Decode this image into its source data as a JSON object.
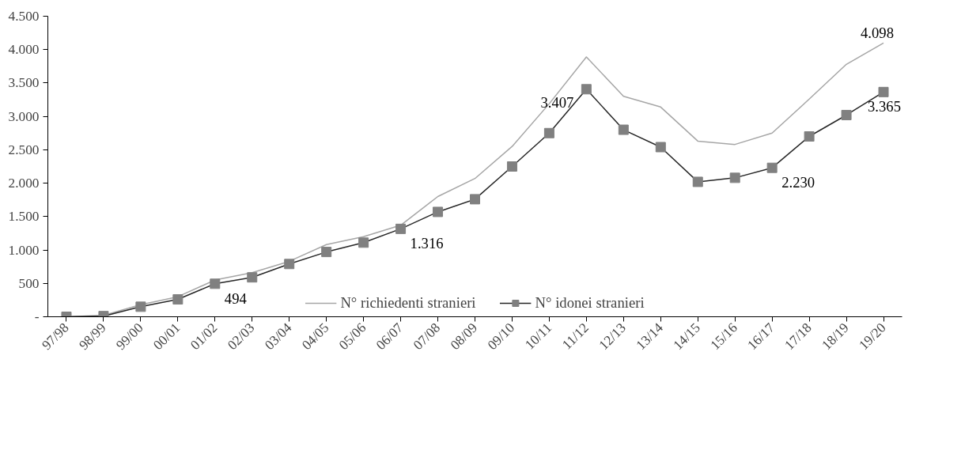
{
  "chart_data": {
    "type": "line",
    "categories": [
      "97/98",
      "98/99",
      "99/00",
      "00/01",
      "01/02",
      "02/03",
      "03/04",
      "04/05",
      "05/06",
      "06/07",
      "07/08",
      "08/09",
      "09/10",
      "10/11",
      "11/12",
      "12/13",
      "13/14",
      "14/15",
      "15/16",
      "16/17",
      "17/18",
      "18/19",
      "19/20"
    ],
    "series": [
      {
        "name": "N° richiedenti stranieri",
        "color": "#a6a6a6",
        "marker": "none",
        "values": [
          0,
          20,
          180,
          300,
          550,
          660,
          830,
          1080,
          1200,
          1370,
          1800,
          2070,
          2550,
          3190,
          3890,
          3300,
          3140,
          2630,
          2580,
          2750,
          3260,
          3780,
          4098
        ],
        "value_labels": [
          null,
          null,
          null,
          null,
          null,
          null,
          null,
          null,
          null,
          null,
          null,
          null,
          null,
          null,
          null,
          null,
          null,
          null,
          null,
          null,
          null,
          null,
          "4.098"
        ]
      },
      {
        "name": "N° idonei stranieri",
        "color": "#262626",
        "marker": "square",
        "values": [
          0,
          10,
          150,
          260,
          494,
          590,
          790,
          970,
          1110,
          1316,
          1570,
          1760,
          2250,
          2750,
          3407,
          2800,
          2540,
          2020,
          2080,
          2230,
          2700,
          3020,
          3365
        ],
        "value_labels": [
          null,
          null,
          null,
          null,
          "494",
          null,
          null,
          null,
          null,
          "1.316",
          null,
          null,
          null,
          null,
          "3.407",
          null,
          null,
          null,
          null,
          "2.230",
          null,
          null,
          "3.365"
        ]
      }
    ],
    "ylim": [
      0,
      4500
    ],
    "yticks": [
      {
        "value": 0,
        "label": "-"
      },
      {
        "value": 500,
        "label": "500"
      },
      {
        "value": 1000,
        "label": "1.000"
      },
      {
        "value": 1500,
        "label": "1.500"
      },
      {
        "value": 2000,
        "label": "2.000"
      },
      {
        "value": 2500,
        "label": "2.500"
      },
      {
        "value": 3000,
        "label": "3.000"
      },
      {
        "value": 3500,
        "label": "3.500"
      },
      {
        "value": 4000,
        "label": "4.000"
      },
      {
        "value": 4500,
        "label": "4.500"
      }
    ],
    "grid": false,
    "legend": "bottom",
    "line_style": "solid"
  }
}
